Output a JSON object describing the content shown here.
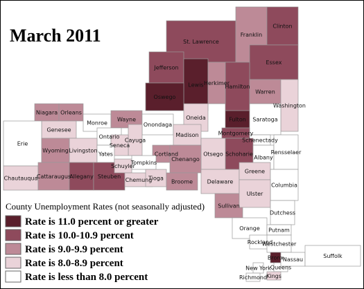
{
  "title": "March 2011",
  "legend": {
    "title": "County Unemployment Rates (not seasonally adjusted)",
    "items": [
      {
        "label": "Rate is 11.0 percent or greater",
        "color": "#5a1f2c"
      },
      {
        "label": "Rate is 10.0-10.9 percent",
        "color": "#8e4a5c"
      },
      {
        "label": "Rate is 9.0-9.9 percent",
        "color": "#bd8a97"
      },
      {
        "label": "Rate is 8.0-8.9 percent",
        "color": "#ead3d9"
      },
      {
        "label": "Rate is less than 8.0 percent",
        "color": "#ffffff"
      }
    ]
  },
  "counties": [
    {
      "name": "St. Lawrence",
      "class": 1
    },
    {
      "name": "Franklin",
      "class": 2
    },
    {
      "name": "Clinton",
      "class": 1
    },
    {
      "name": "Jefferson",
      "class": 1
    },
    {
      "name": "Lewis",
      "class": 0
    },
    {
      "name": "Essex",
      "class": 1
    },
    {
      "name": "Hamilton",
      "class": 1
    },
    {
      "name": "Herkimer",
      "class": 2
    },
    {
      "name": "Warren",
      "class": 2
    },
    {
      "name": "Washington",
      "class": 3
    },
    {
      "name": "Oswego",
      "class": 0
    },
    {
      "name": "Niagara",
      "class": 2
    },
    {
      "name": "Orleans",
      "class": 2
    },
    {
      "name": "Monroe",
      "class": 4
    },
    {
      "name": "Wayne",
      "class": 2
    },
    {
      "name": "Onondaga",
      "class": 4
    },
    {
      "name": "Oneida",
      "class": 3
    },
    {
      "name": "Fulton",
      "class": 0
    },
    {
      "name": "Saratoga",
      "class": 4
    },
    {
      "name": "Genesee",
      "class": 3
    },
    {
      "name": "Ontario",
      "class": 4
    },
    {
      "name": "Cayuga",
      "class": 3
    },
    {
      "name": "Madison",
      "class": 3
    },
    {
      "name": "Montgomery",
      "class": 1
    },
    {
      "name": "Schenectady",
      "class": 4
    },
    {
      "name": "Erie",
      "class": 4
    },
    {
      "name": "Livingston",
      "class": 3
    },
    {
      "name": "Seneca",
      "class": 3
    },
    {
      "name": "Wyoming",
      "class": 2
    },
    {
      "name": "Yates",
      "class": 4
    },
    {
      "name": "Schoharie",
      "class": 1
    },
    {
      "name": "Albany",
      "class": 4
    },
    {
      "name": "Rensselaer",
      "class": 4
    },
    {
      "name": "Cortland",
      "class": 2
    },
    {
      "name": "Otsego",
      "class": 3
    },
    {
      "name": "Tompkins",
      "class": 4
    },
    {
      "name": "Chenango",
      "class": 2
    },
    {
      "name": "Chautauqua",
      "class": 3
    },
    {
      "name": "Cattaraugus",
      "class": 2
    },
    {
      "name": "Allegany",
      "class": 1
    },
    {
      "name": "Steuben",
      "class": 1
    },
    {
      "name": "Schuyler",
      "class": 3
    },
    {
      "name": "Chemung",
      "class": 3
    },
    {
      "name": "Tioga",
      "class": 3
    },
    {
      "name": "Broome",
      "class": 2
    },
    {
      "name": "Delaware",
      "class": 3
    },
    {
      "name": "Greene",
      "class": 3
    },
    {
      "name": "Columbia",
      "class": 4
    },
    {
      "name": "Sullivan",
      "class": 2
    },
    {
      "name": "Ulster",
      "class": 3
    },
    {
      "name": "Dutchess",
      "class": 4
    },
    {
      "name": "Orange",
      "class": 4
    },
    {
      "name": "Putnam",
      "class": 4
    },
    {
      "name": "Rockland",
      "class": 4
    },
    {
      "name": "Westchester",
      "class": 4
    },
    {
      "name": "Bronx",
      "class": 0
    },
    {
      "name": "New York",
      "class": 4
    },
    {
      "name": "Queens",
      "class": 4
    },
    {
      "name": "Kings",
      "class": 3
    },
    {
      "name": "Richmond",
      "class": 4
    },
    {
      "name": "Nassau",
      "class": 4
    },
    {
      "name": "Suffolk",
      "class": 4
    }
  ]
}
